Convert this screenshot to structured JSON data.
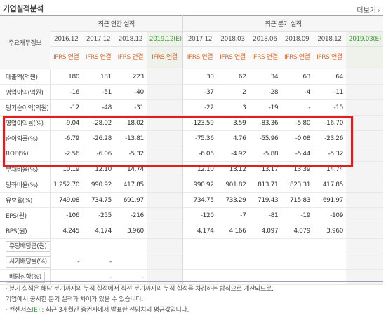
{
  "header": {
    "title": "기업실적분석",
    "more_label": "더보기",
    "more_arrow": "›"
  },
  "table": {
    "item_header": "주요재무정보",
    "annual_header": "최근 연간 실적",
    "quarter_header": "최근 분기 실적",
    "periods": [
      "2016.12",
      "2017.12",
      "2018.12",
      "2019.12(E)",
      "2017.12",
      "2018.03",
      "2018.06",
      "2018.09",
      "2018.12",
      "2019.03(E)"
    ],
    "basis": [
      "IFRS 연결",
      "IFRS 연결",
      "IFRS 연결",
      "IFRS 연결",
      "IFRS 연결",
      "IFRS 연결",
      "IFRS 연결",
      "IFRS 연결",
      "IFRS 연결",
      ""
    ],
    "rows": [
      {
        "label": "매출액(억원)",
        "values": [
          "180",
          "181",
          "223",
          "",
          "30",
          "62",
          "34",
          "63",
          "64",
          ""
        ]
      },
      {
        "label": "영업이익(억원)",
        "values": [
          "-16",
          "-51",
          "-40",
          "",
          "-37",
          "2",
          "-28",
          "-4",
          "-11",
          ""
        ]
      },
      {
        "label": "당기순이익(억원)",
        "values": [
          "-12",
          "-48",
          "-31",
          "",
          "-22",
          "3",
          "-19",
          "-",
          "-15",
          ""
        ]
      },
      {
        "label": "영업이익률(%)",
        "values": [
          "-9.04",
          "-28.02",
          "-18.02",
          "",
          "-123.59",
          "3.59",
          "-83.36",
          "-5.80",
          "-16.70",
          ""
        ]
      },
      {
        "label": "순이익률(%)",
        "values": [
          "-6.79",
          "-26.28",
          "-13.81",
          "",
          "-75.36",
          "4.76",
          "-55.96",
          "-0.08",
          "-23.26",
          ""
        ]
      },
      {
        "label": "ROE(%)",
        "values": [
          "-2.56",
          "-6.06",
          "-5.32",
          "",
          "-6.06",
          "-4.92",
          "-5.88",
          "-5.44",
          "-5.32",
          ""
        ]
      },
      {
        "label": "부채비율(%)",
        "values": [
          "10.19",
          "12.10",
          "14.74",
          "",
          "12.10",
          "13.12",
          "13.17",
          "13.39",
          "14.74",
          ""
        ]
      },
      {
        "label": "당좌비율(%)",
        "values": [
          "1,252.70",
          "990.92",
          "417.85",
          "",
          "990.92",
          "901.82",
          "813.71",
          "823.31",
          "417.85",
          ""
        ]
      },
      {
        "label": "유보율(%)",
        "values": [
          "749.08",
          "734.75",
          "691.97",
          "",
          "734.75",
          "733.29",
          "719.43",
          "715.83",
          "691.97",
          ""
        ]
      },
      {
        "label": "EPS(원)",
        "values": [
          "-106",
          "-255",
          "-216",
          "",
          "-120",
          "-7",
          "-81",
          "-19",
          "-109",
          ""
        ]
      },
      {
        "label": "BPS(원)",
        "values": [
          "4,245",
          "4,174",
          "3,960",
          "",
          "4,174",
          "4,166",
          "4,097",
          "4,079",
          "3,960",
          ""
        ]
      },
      {
        "label": "주당배당금(원)",
        "values": [
          "",
          "",
          "",
          "",
          "",
          "",
          "",
          "",
          "",
          ""
        ]
      },
      {
        "label": "시가배당률(%)",
        "values": [
          "-",
          "-",
          "",
          "",
          "",
          "",
          "",
          "",
          "",
          ""
        ]
      },
      {
        "label": "배당성향(%)",
        "values": [
          "",
          "-",
          "-",
          "",
          "",
          "",
          "",
          "",
          "",
          ""
        ]
      }
    ]
  },
  "notes": {
    "line1": "· 분기 실적은 해당 분기까지의 누적 실적에서 직전 분기까지의 누적 실적을 차감하는 방식으로 계산되므로,",
    "line2": "  기업에서 공시한 분기 실적과 차이가 있을 수 있습니다.",
    "line3_prefix": "· 컨센서스",
    "line3_mark": "(E)",
    "line3_suffix": " : 최근 3개월간 증권사에서 발표한 전망치의 평균값입니다."
  },
  "colors": {
    "negative": "#e0433c",
    "estimate": "#3d9c3a",
    "highlight": "#e01e1e"
  }
}
